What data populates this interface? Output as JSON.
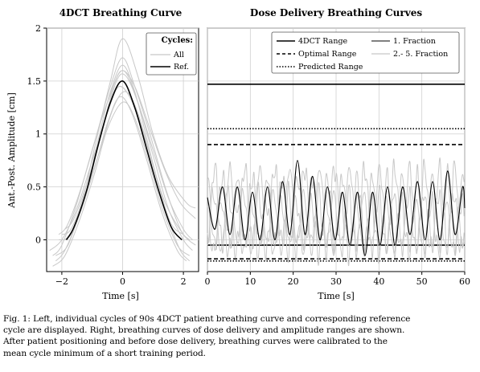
{
  "chart_data": [
    {
      "type": "line",
      "title": "4DCT Breathing Curve",
      "xlabel": "Time [s]",
      "ylabel": "Ant.-Post. Amplitude [cm]",
      "xlim": [
        -2.5,
        2.5
      ],
      "ylim": [
        -0.3,
        2.0
      ],
      "xticks": [
        "−2",
        "0",
        "2"
      ],
      "yticks": [
        "0",
        "0.5",
        "1",
        "1.5",
        "2"
      ],
      "grid": true,
      "legend": {
        "title": "Cycles:",
        "position": "top-right",
        "entries": [
          "All",
          "Ref."
        ]
      },
      "series": [
        {
          "name": "All",
          "color": "#c8c8c8",
          "values_note": "individual cycles",
          "cycles": [
            {
              "x": [
                -2.3,
                -2.0,
                -1.5,
                -1.0,
                -0.5,
                0.0,
                0.5,
                1.0,
                1.5,
                2.0,
                2.3
              ],
              "y": [
                -0.15,
                -0.05,
                0.35,
                0.85,
                1.3,
                1.6,
                1.3,
                0.8,
                0.3,
                0.0,
                -0.1
              ]
            },
            {
              "x": [
                -2.1,
                -1.8,
                -1.3,
                -0.8,
                -0.4,
                0.0,
                0.4,
                0.9,
                1.4,
                1.9,
                2.2
              ],
              "y": [
                0.05,
                0.15,
                0.55,
                1.05,
                1.45,
                1.72,
                1.45,
                1.0,
                0.5,
                0.1,
                0.0
              ]
            },
            {
              "x": [
                -2.2,
                -1.9,
                -1.4,
                -0.9,
                -0.5,
                -0.1,
                0.3,
                0.8,
                1.3,
                1.8,
                2.1
              ],
              "y": [
                -0.2,
                -0.1,
                0.25,
                0.7,
                1.1,
                1.35,
                1.2,
                0.75,
                0.25,
                -0.1,
                -0.2
              ]
            },
            {
              "x": [
                -1.9,
                -1.6,
                -1.2,
                -0.8,
                -0.4,
                0.0,
                0.4,
                0.8,
                1.2,
                1.6,
                2.0
              ],
              "y": [
                0.0,
                0.1,
                0.45,
                0.95,
                1.4,
                1.65,
                1.4,
                0.95,
                0.5,
                0.15,
                0.05
              ]
            },
            {
              "x": [
                -2.4,
                -2.0,
                -1.5,
                -1.0,
                -0.5,
                -0.1,
                0.4,
                0.9,
                1.4,
                2.0,
                2.4
              ],
              "y": [
                -0.1,
                0.0,
                0.3,
                0.75,
                1.2,
                1.45,
                1.25,
                0.8,
                0.35,
                0.05,
                -0.05
              ]
            },
            {
              "x": [
                -2.0,
                -1.7,
                -1.3,
                -0.9,
                -0.4,
                0.0,
                0.5,
                1.0,
                1.5,
                2.1,
                2.4
              ],
              "y": [
                0.05,
                0.1,
                0.4,
                0.9,
                1.5,
                1.9,
                1.55,
                1.0,
                0.6,
                0.35,
                0.3
              ]
            },
            {
              "x": [
                -2.2,
                -1.8,
                -1.3,
                -0.8,
                -0.3,
                0.1,
                0.5,
                1.0,
                1.5,
                1.9,
                2.2
              ],
              "y": [
                -0.15,
                -0.05,
                0.35,
                0.8,
                1.25,
                1.4,
                1.2,
                0.7,
                0.2,
                -0.1,
                -0.2
              ]
            },
            {
              "x": [
                -1.9,
                -1.6,
                -1.1,
                -0.6,
                -0.2,
                0.1,
                0.5,
                1.0,
                1.5,
                2.0,
                2.3
              ],
              "y": [
                0.1,
                0.2,
                0.6,
                1.1,
                1.5,
                1.55,
                1.3,
                0.85,
                0.4,
                0.1,
                0.0
              ]
            },
            {
              "x": [
                -2.3,
                -1.9,
                -1.4,
                -0.9,
                -0.5,
                0.0,
                0.4,
                0.9,
                1.3,
                1.8,
                2.2
              ],
              "y": [
                -0.25,
                -0.15,
                0.2,
                0.65,
                1.05,
                1.3,
                1.15,
                0.7,
                0.3,
                -0.05,
                -0.15
              ]
            },
            {
              "x": [
                -2.1,
                -1.7,
                -1.2,
                -0.7,
                -0.3,
                0.0,
                0.4,
                0.9,
                1.4,
                1.9,
                2.4
              ],
              "y": [
                0.0,
                0.05,
                0.45,
                1.0,
                1.45,
                1.6,
                1.45,
                1.05,
                0.65,
                0.35,
                0.2
              ]
            }
          ]
        },
        {
          "name": "Ref.",
          "color": "#000000",
          "x": [
            -1.85,
            -1.6,
            -1.2,
            -0.8,
            -0.4,
            0.0,
            0.4,
            0.8,
            1.2,
            1.6,
            1.95
          ],
          "y": [
            0.0,
            0.12,
            0.45,
            0.9,
            1.3,
            1.5,
            1.25,
            0.85,
            0.45,
            0.12,
            0.0
          ]
        }
      ]
    },
    {
      "type": "line",
      "title": "Dose Delivery Breathing Curves",
      "xlabel": "Time [s]",
      "ylabel": "",
      "xlim": [
        0,
        60
      ],
      "ylim": [
        -0.3,
        2.0
      ],
      "xticks": [
        "0",
        "10",
        "20",
        "30",
        "40",
        "50",
        "60"
      ],
      "grid": true,
      "legend": {
        "position": "top-right",
        "entries": [
          "4DCT Range",
          "1. Fraction",
          "Optimal Range",
          "2.- 5. Fraction",
          "Predicted Range"
        ]
      },
      "ranges": [
        {
          "name": "4DCT Range",
          "style": "solid",
          "y": [
            -0.05,
            1.47
          ]
        },
        {
          "name": "Optimal Range",
          "style": "dashed",
          "y": [
            -0.18,
            0.9
          ]
        },
        {
          "name": "Predicted Range",
          "style": "dotted",
          "y": [
            -0.2,
            1.05
          ]
        }
      ],
      "series": [
        {
          "name": "1. Fraction",
          "color": "#000000",
          "period_s": 3.5,
          "x": [
            0,
            1.75,
            3.5,
            5.25,
            7,
            8.75,
            10.5,
            12.25,
            14,
            15.75,
            17.5,
            19.25,
            21,
            22.75,
            24.5,
            26.25,
            28,
            29.75,
            31.5,
            33.25,
            35,
            36.75,
            38.5,
            40.25,
            42,
            43.75,
            45.5,
            47.25,
            49,
            50.75,
            52.5,
            54.25,
            56,
            57.75,
            59.5,
            60
          ],
          "y": [
            0.4,
            0.1,
            0.5,
            0.05,
            0.5,
            0.0,
            0.45,
            0.0,
            0.5,
            0.0,
            0.55,
            0.05,
            0.75,
            0.05,
            0.6,
            0.0,
            0.5,
            0.0,
            0.45,
            -0.05,
            0.45,
            -0.15,
            0.45,
            -0.05,
            0.5,
            -0.05,
            0.5,
            0.05,
            0.55,
            0.0,
            0.55,
            0.0,
            0.65,
            0.05,
            0.5,
            0.3
          ]
        },
        {
          "name": "2.- 5. Fraction",
          "color": "#c8c8c8",
          "note": "four additional fractions"
        }
      ]
    }
  ],
  "caption": {
    "lines": [
      "Fig. 1: Left, individual cycles of 90s 4DCT patient breathing curve and corresponding reference",
      "cycle are displayed. Right, breathing curves of dose delivery and amplitude ranges are shown.",
      "After patient positioning and before dose delivery, breathing curves were calibrated to the",
      "mean cycle minimum of a short training period."
    ]
  }
}
